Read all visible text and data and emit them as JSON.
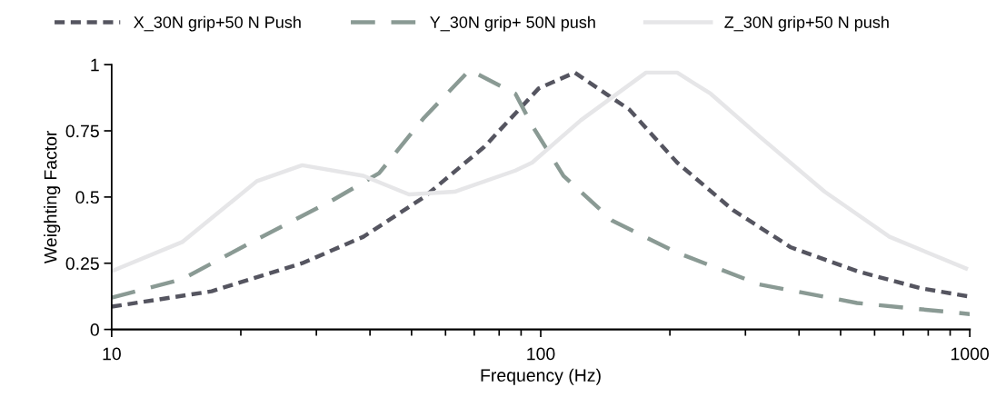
{
  "chart_data": {
    "type": "line",
    "xlabel": "Frequency (Hz)",
    "ylabel": "Weighting Factor",
    "log": "x",
    "xlim": [
      10,
      1000
    ],
    "xticks": [
      10,
      100,
      1000
    ],
    "ylim": [
      0,
      1
    ],
    "yticks": [
      0,
      0.25,
      0.5,
      0.75,
      1
    ],
    "grid": false,
    "legend": "top",
    "marker": "none",
    "series": [
      {
        "name": "X_30N grip+50 N Push",
        "color": "#555560",
        "line_style": "dotted",
        "x": [
          10,
          17.1,
          27.8,
          38.6,
          53.5,
          73.9,
          98.9,
          120,
          161,
          208,
          281,
          383,
          546,
          771,
          1000
        ],
        "values": [
          0.086,
          0.144,
          0.25,
          0.35,
          0.5,
          0.69,
          0.91,
          0.97,
          0.83,
          0.63,
          0.45,
          0.31,
          0.22,
          0.155,
          0.124
        ]
      },
      {
        "name": "Y_30N grip+ 50N push",
        "color": "#8a9a94",
        "line_style": "dashed",
        "x": [
          10,
          14.6,
          21.8,
          32.9,
          42.0,
          53.5,
          68.3,
          87.3,
          95.5,
          113,
          147,
          208,
          323,
          546,
          1000
        ],
        "values": [
          0.12,
          0.19,
          0.34,
          0.49,
          0.59,
          0.8,
          0.98,
          0.89,
          0.77,
          0.58,
          0.41,
          0.29,
          0.17,
          0.1,
          0.058
        ]
      },
      {
        "name": "Z_30N grip+50 N push",
        "color": "#e6e6e8",
        "line_style": "solid",
        "x": [
          10,
          14.6,
          21.8,
          27.8,
          38.6,
          49.3,
          63.0,
          87.3,
          95.5,
          124,
          176,
          208,
          249,
          323,
          459,
          650,
          980
        ],
        "values": [
          0.22,
          0.33,
          0.56,
          0.62,
          0.58,
          0.51,
          0.52,
          0.6,
          0.63,
          0.79,
          0.97,
          0.97,
          0.89,
          0.73,
          0.52,
          0.35,
          0.23
        ]
      }
    ]
  }
}
